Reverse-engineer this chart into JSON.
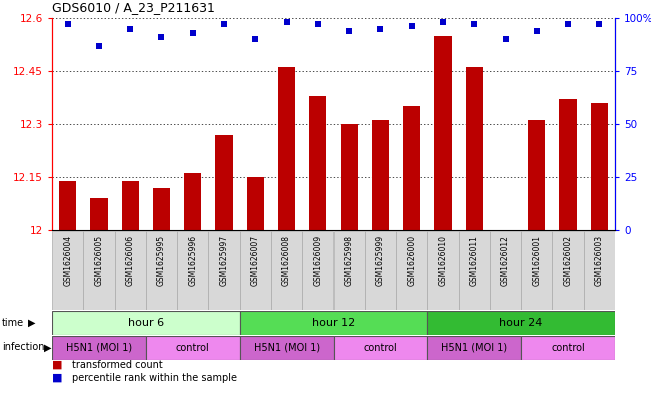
{
  "title": "GDS6010 / A_23_P211631",
  "samples": [
    "GSM1626004",
    "GSM1626005",
    "GSM1626006",
    "GSM1625995",
    "GSM1625996",
    "GSM1625997",
    "GSM1626007",
    "GSM1626008",
    "GSM1626009",
    "GSM1625998",
    "GSM1625999",
    "GSM1626000",
    "GSM1626010",
    "GSM1626011",
    "GSM1626012",
    "GSM1626001",
    "GSM1626002",
    "GSM1626003"
  ],
  "bar_values": [
    12.14,
    12.09,
    12.14,
    12.12,
    12.16,
    12.27,
    12.15,
    12.46,
    12.38,
    12.3,
    12.31,
    12.35,
    12.55,
    12.46,
    12.0,
    12.31,
    12.37,
    12.36
  ],
  "dot_values": [
    97,
    87,
    95,
    91,
    93,
    97,
    90,
    98,
    97,
    94,
    95,
    96,
    98,
    97,
    90,
    94,
    97,
    97
  ],
  "ymin": 12.0,
  "ymax": 12.6,
  "yticks": [
    12.0,
    12.15,
    12.3,
    12.45,
    12.6
  ],
  "ytick_labels": [
    "12",
    "12.15",
    "12.3",
    "12.45",
    "12.6"
  ],
  "y2ticks": [
    0,
    25,
    50,
    75,
    100
  ],
  "y2tick_labels": [
    "0",
    "25",
    "50",
    "75",
    "100%"
  ],
  "bar_color": "#bb0000",
  "dot_color": "#0000cc",
  "bg_color": "#ffffff",
  "time_groups": [
    {
      "label": "hour 6",
      "start": 0,
      "end": 6,
      "color": "#ccffcc"
    },
    {
      "label": "hour 12",
      "start": 6,
      "end": 12,
      "color": "#55dd55"
    },
    {
      "label": "hour 24",
      "start": 12,
      "end": 18,
      "color": "#33bb33"
    }
  ],
  "infection_groups": [
    {
      "label": "H5N1 (MOI 1)",
      "start": 0,
      "end": 3,
      "color": "#cc66cc"
    },
    {
      "label": "control",
      "start": 3,
      "end": 6,
      "color": "#ee88ee"
    },
    {
      "label": "H5N1 (MOI 1)",
      "start": 6,
      "end": 9,
      "color": "#cc66cc"
    },
    {
      "label": "control",
      "start": 9,
      "end": 12,
      "color": "#ee88ee"
    },
    {
      "label": "H5N1 (MOI 1)",
      "start": 12,
      "end": 15,
      "color": "#cc66cc"
    },
    {
      "label": "control",
      "start": 15,
      "end": 18,
      "color": "#ee88ee"
    }
  ],
  "sample_bg_color": "#d8d8d8",
  "sample_border_color": "#aaaaaa"
}
